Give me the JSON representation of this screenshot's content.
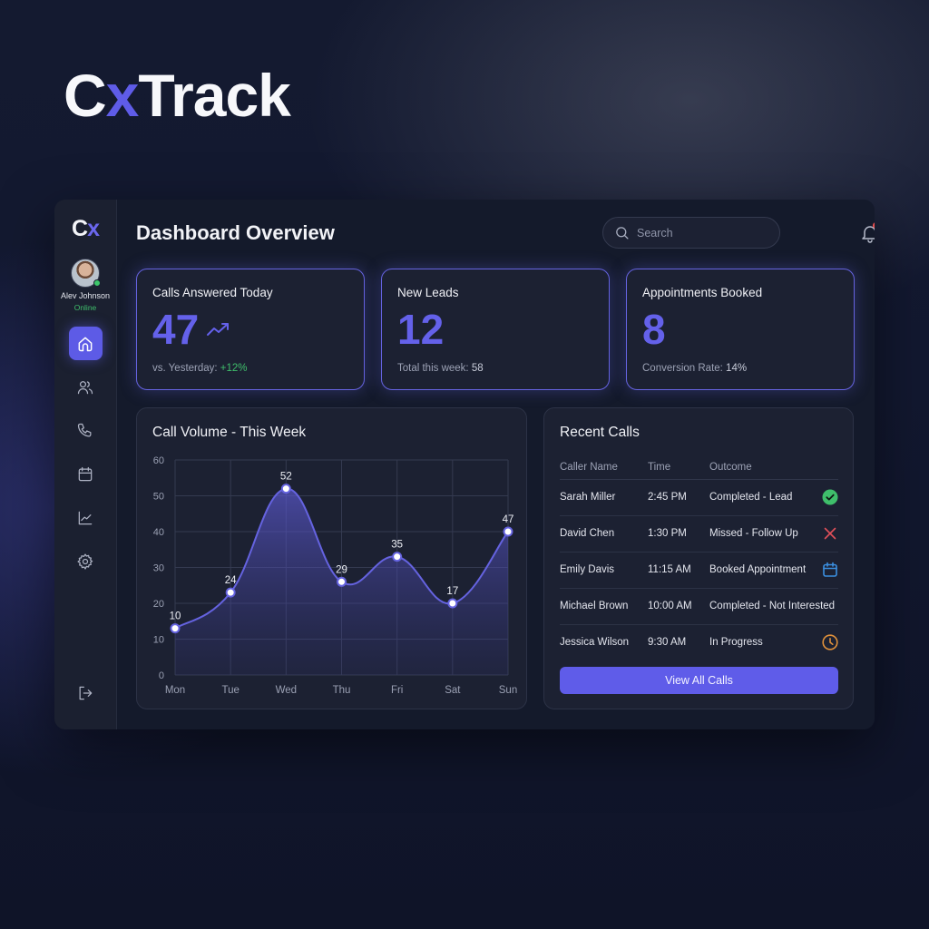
{
  "brand": {
    "prefix": "C",
    "accent": "x",
    "suffix": "Track"
  },
  "sidebar": {
    "logo": {
      "prefix": "C",
      "accent": "x"
    },
    "user": {
      "name": "Alev Johnson",
      "status": "Online"
    },
    "items": [
      {
        "id": "home",
        "icon": "home-icon",
        "active": true
      },
      {
        "id": "contacts",
        "icon": "users-icon",
        "active": false
      },
      {
        "id": "calls",
        "icon": "phone-icon",
        "active": false
      },
      {
        "id": "calendar",
        "icon": "calendar-icon",
        "active": false
      },
      {
        "id": "analytics",
        "icon": "chart-line-icon",
        "active": false
      },
      {
        "id": "settings",
        "icon": "gear-icon",
        "active": false
      }
    ],
    "logout_icon": "logout-icon"
  },
  "header": {
    "title": "Dashboard Overview",
    "search_placeholder": "Search",
    "notification_icon": "bell-icon",
    "help_icon": "help-icon"
  },
  "stats": [
    {
      "label": "Calls Answered Today",
      "value": "47",
      "sub_label": "vs. Yesterday: ",
      "sub_value": "+12%",
      "trend_icon": "trending-up-icon"
    },
    {
      "label": "New Leads",
      "value": "12",
      "sub_label": "Total this week: ",
      "sub_value": "58"
    },
    {
      "label": "Appointments Booked",
      "value": "8",
      "sub_label": "Conversion Rate: ",
      "sub_value": "14%"
    }
  ],
  "chart_data": {
    "type": "area",
    "title": "Call Volume - This Week",
    "categories": [
      "Mon",
      "Tue",
      "Wed",
      "Thu",
      "Fri",
      "Sat",
      "Sun"
    ],
    "values": [
      10,
      24,
      52,
      29,
      35,
      17,
      47
    ],
    "plotted_positions": [
      13,
      23,
      52,
      26,
      33,
      20,
      40
    ],
    "xlabel": "",
    "ylabel": "",
    "ylim": [
      0,
      60
    ],
    "yticks": [
      0,
      10,
      20,
      30,
      40,
      50,
      60
    ],
    "grid": true,
    "legend": null,
    "color": "#6563e0"
  },
  "recent_calls": {
    "title": "Recent Calls",
    "columns": [
      "Caller Name",
      "Time",
      "Outcome"
    ],
    "rows": [
      {
        "name": "Sarah Miller",
        "time": "2:45 PM",
        "outcome": "Completed - Lead",
        "icon": "check-circle-icon",
        "color": "#3fbf6b"
      },
      {
        "name": "David Chen",
        "time": "1:30 PM",
        "outcome": "Missed - Follow Up",
        "icon": "x-icon",
        "color": "#e0505a"
      },
      {
        "name": "Emily Davis",
        "time": "11:15 AM",
        "outcome": "Booked Appointment",
        "icon": "calendar-icon",
        "color": "#3b8fe0"
      },
      {
        "name": "Michael Brown",
        "time": "10:00 AM",
        "outcome": "Completed - Not Interested",
        "icon": null,
        "color": null
      },
      {
        "name": "Jessica Wilson",
        "time": "9:30 AM",
        "outcome": "In Progress",
        "icon": "clock-icon",
        "color": "#e0913b"
      }
    ],
    "button_label": "View All Calls"
  }
}
